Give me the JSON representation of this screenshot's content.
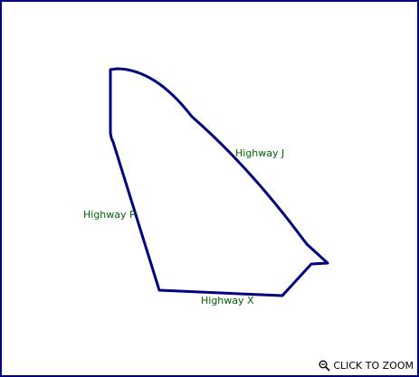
{
  "map": {
    "boundary_color": "#000080",
    "label_color": "#006400",
    "labels": {
      "highway_j": "Highway J",
      "highway_p": "Highway P",
      "highway_x": "Highway X"
    }
  },
  "zoom": {
    "label": "CLICK TO ZOOM",
    "icon": "magnifier-icon"
  }
}
